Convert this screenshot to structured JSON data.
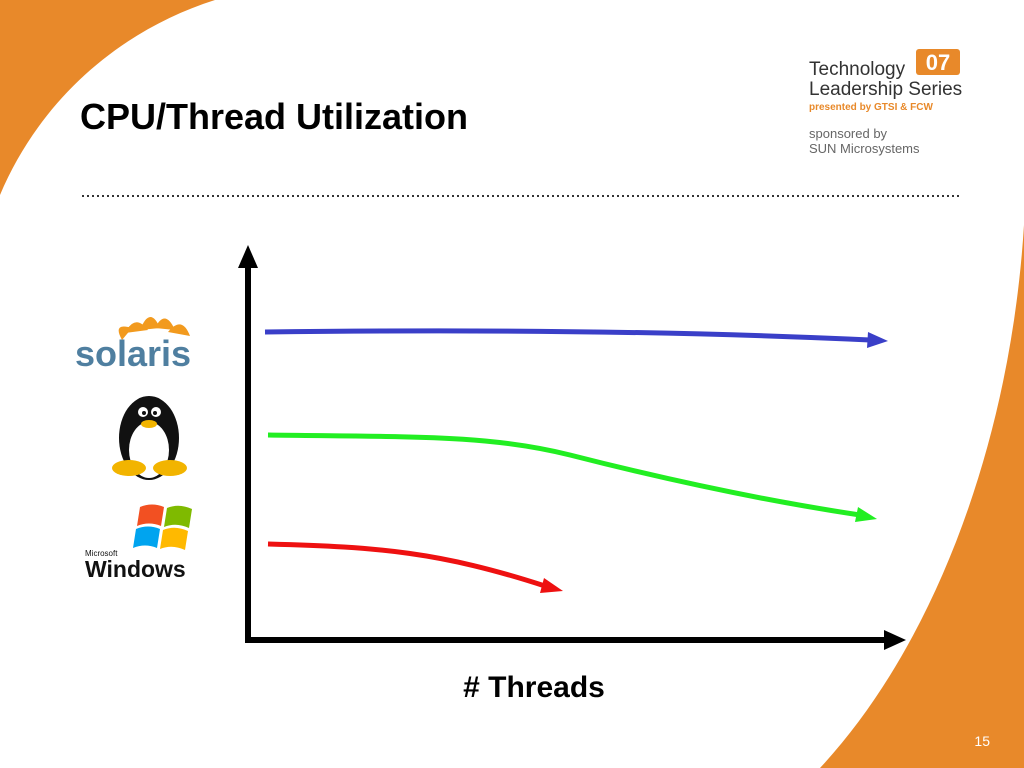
{
  "header": {
    "title": "CPU/Thread Utilization"
  },
  "branding": {
    "series_name": "Technology",
    "series_year": "07",
    "series_subtitle": "Leadership Series",
    "presenter": "presented by GTSI & FCW",
    "sponsor_label": "sponsored by",
    "sponsor": "SUN Microsystems"
  },
  "logos": {
    "solaris": "solaris",
    "windows_brand": "Microsoft",
    "windows": "Windows"
  },
  "diagram": {
    "x_axis_label": "# Threads"
  },
  "footer": {
    "page_number": "15"
  }
}
